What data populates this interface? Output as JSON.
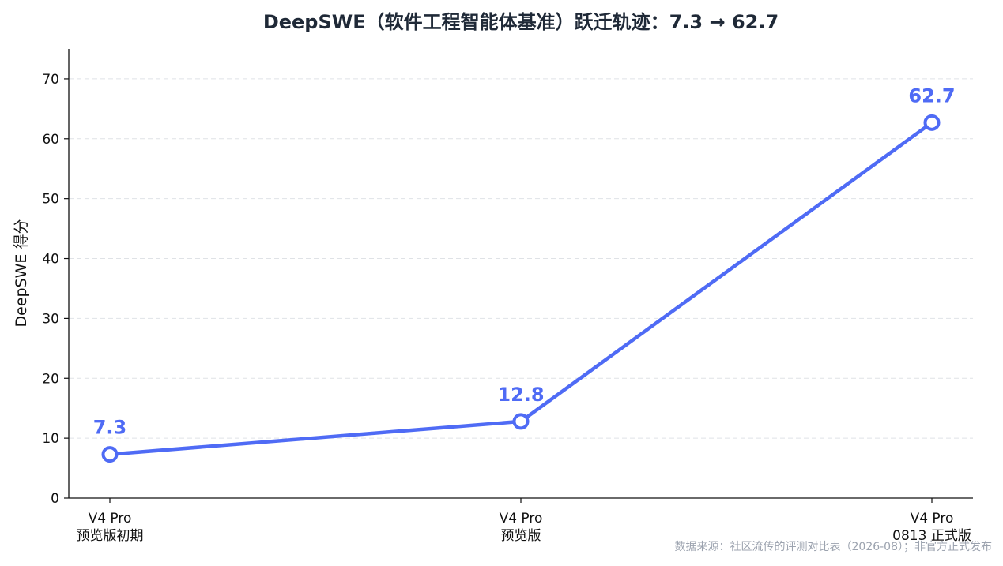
{
  "chart_data": {
    "type": "line",
    "title": "DeepSWE（软件工程智能体基准）跃迁轨迹：7.3 → 62.7",
    "xlabel": "",
    "ylabel": "DeepSWE 得分",
    "ylim": [
      0,
      75
    ],
    "yticks": [
      0,
      10,
      20,
      30,
      40,
      50,
      60,
      70
    ],
    "grid": true,
    "categories": [
      [
        "V4 Pro",
        "预览版初期"
      ],
      [
        "V4 Pro",
        "预览版"
      ],
      [
        "V4 Pro",
        "0813 正式版"
      ]
    ],
    "series": [
      {
        "values": [
          7.3,
          12.8,
          62.7
        ],
        "labels": [
          "7.3",
          "12.8",
          "62.7"
        ],
        "color": "#4f6bf5"
      }
    ]
  },
  "footer": {
    "source": "数据来源：社区流传的评测对比表（2026-08）；非官方正式发布"
  },
  "colors": {
    "line": "#4f6bf5",
    "title": "#1f2937",
    "grid": "#d1d5db",
    "source": "#9ca3af"
  }
}
